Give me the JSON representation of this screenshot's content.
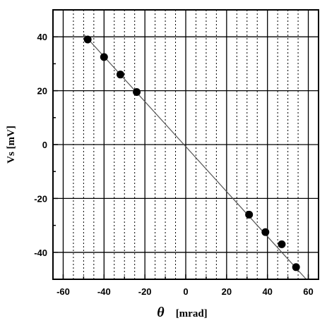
{
  "chart_data": {
    "type": "scatter",
    "title": "",
    "xlabel_symbol": "θ",
    "xlabel_unit": "[mrad]",
    "ylabel": "Vs [mV]",
    "xlim": [
      -65,
      65
    ],
    "ylim": [
      -50,
      50
    ],
    "x_ticks": [
      -60,
      -40,
      -20,
      0,
      20,
      40,
      60
    ],
    "y_ticks": [
      -40,
      -20,
      0,
      20,
      40
    ],
    "x_grid_step": 5,
    "grid": true,
    "series": [
      {
        "points": [
          {
            "x": -48,
            "y": 39
          },
          {
            "x": -40,
            "y": 32.5
          },
          {
            "x": -32,
            "y": 26
          },
          {
            "x": -24,
            "y": 19.5
          },
          {
            "x": 31,
            "y": -26
          },
          {
            "x": 39,
            "y": -32.5
          },
          {
            "x": 47,
            "y": -37
          },
          {
            "x": 54,
            "y": -45.5
          }
        ],
        "fit_line": [
          {
            "x": -50,
            "y": 41
          },
          {
            "x": 59,
            "y": -50
          }
        ]
      }
    ],
    "colors": {
      "points": "#000000",
      "fit_line": "#555555",
      "grid_major": "#000000",
      "grid_minor": "#000000"
    }
  }
}
